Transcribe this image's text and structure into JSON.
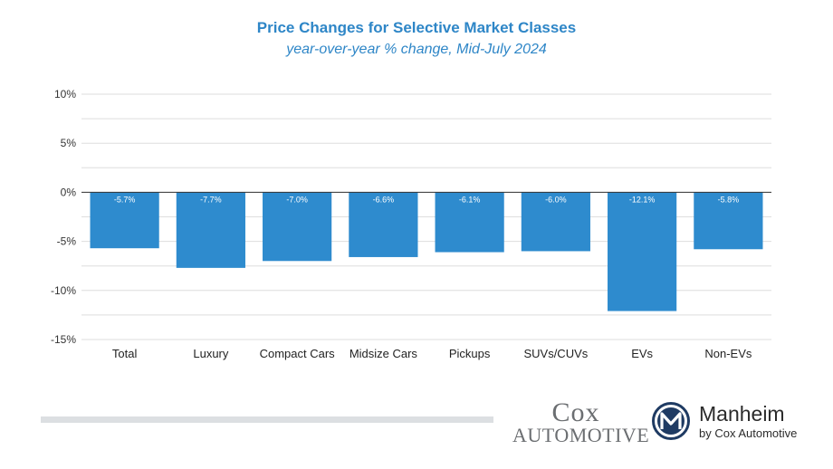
{
  "chart_data": {
    "type": "bar",
    "title": "Price Changes for Selective Market Classes",
    "subtitle": "year-over-year % change, Mid-July 2024",
    "categories": [
      "Total",
      "Luxury",
      "Compact Cars",
      "Midsize Cars",
      "Pickups",
      "SUVs/CUVs",
      "EVs",
      "Non-EVs"
    ],
    "values": [
      -5.7,
      -7.7,
      -7.0,
      -6.6,
      -6.1,
      -6.0,
      -12.1,
      -5.8
    ],
    "data_labels": [
      "-5.7%",
      "-7.7%",
      "-7.0%",
      "-6.6%",
      "-6.1%",
      "-6.0%",
      "-12.1%",
      "-5.8%"
    ],
    "ylim": [
      -15,
      10
    ],
    "yticks": [
      -15,
      -10,
      -5,
      0,
      5,
      10
    ],
    "ytick_labels": [
      "-15%",
      "-10%",
      "-5%",
      "0%",
      "5%",
      "10%"
    ],
    "xlabel": "",
    "ylabel": "",
    "grid": true,
    "bar_color": "#2e8bce",
    "title_color": "#2e86c7"
  },
  "logos": {
    "cox_line1": "Cox",
    "cox_line2": "Automotive",
    "manheim_name": "Manheim",
    "manheim_sub": "by Cox Automotive"
  }
}
